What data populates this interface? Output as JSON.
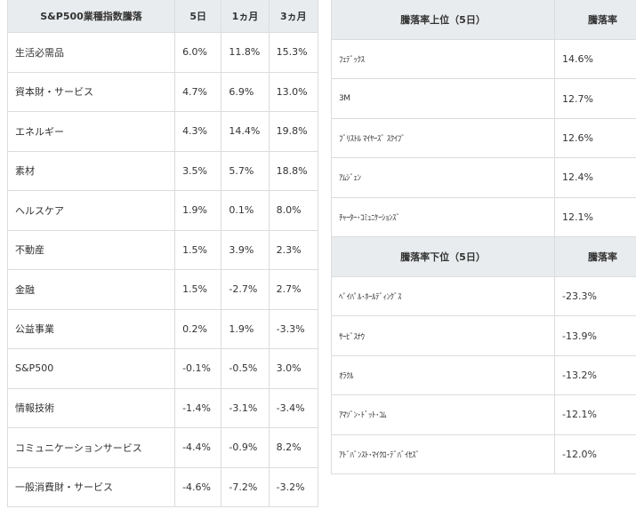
{
  "sector_table": {
    "headers": [
      "S&P500業種指数騰落",
      "5日",
      "1ヵ月",
      "3ヵ月"
    ],
    "rows": [
      {
        "name": "生活必需品",
        "d5": "6.0%",
        "m1": "11.8%",
        "m3": "15.3%"
      },
      {
        "name": "資本財・サービス",
        "d5": "4.7%",
        "m1": "6.9%",
        "m3": "13.0%"
      },
      {
        "name": "エネルギー",
        "d5": "4.3%",
        "m1": "14.4%",
        "m3": "19.8%"
      },
      {
        "name": "素材",
        "d5": "3.5%",
        "m1": "5.7%",
        "m3": "18.8%"
      },
      {
        "name": "ヘルスケア",
        "d5": "1.9%",
        "m1": "0.1%",
        "m3": "8.0%"
      },
      {
        "name": "不動産",
        "d5": "1.5%",
        "m1": "3.9%",
        "m3": "2.3%"
      },
      {
        "name": "金融",
        "d5": "1.5%",
        "m1": "-2.7%",
        "m3": "2.7%"
      },
      {
        "name": "公益事業",
        "d5": "0.2%",
        "m1": "1.9%",
        "m3": "-3.3%"
      },
      {
        "name": "S&P500",
        "d5": "-0.1%",
        "m1": "-0.5%",
        "m3": "3.0%"
      },
      {
        "name": "情報技術",
        "d5": "-1.4%",
        "m1": "-3.1%",
        "m3": "-3.4%"
      },
      {
        "name": "コミュニケーションサービス",
        "d5": "-4.4%",
        "m1": "-0.9%",
        "m3": "8.2%"
      },
      {
        "name": "一般消費財・サービス",
        "d5": "-4.6%",
        "m1": "-7.2%",
        "m3": "-3.2%"
      }
    ]
  },
  "top_movers": {
    "headers": [
      "騰落率上位（5日）",
      "騰落率"
    ],
    "rows": [
      {
        "name": "ﾌｪﾃﾞｯｸｽ",
        "rate": "14.6%"
      },
      {
        "name": "3M",
        "rate": "12.7%"
      },
      {
        "name": "ﾌﾞﾘｽﾄﾙ ﾏｲﾔｰｽﾞ ｽｸｲﾌﾞ",
        "rate": "12.6%"
      },
      {
        "name": "ｱﾑｼﾞｪﾝ",
        "rate": "12.4%"
      },
      {
        "name": "ﾁｬｰﾀｰ･ｺﾐｭﾆｹｰｼｮﾝｽﾞ",
        "rate": "12.1%"
      }
    ]
  },
  "bottom_movers": {
    "headers": [
      "騰落率下位（5日）",
      "騰落率"
    ],
    "rows": [
      {
        "name": "ﾍﾟｲﾊﾟﾙ･ﾎｰﾙﾃﾞｨﾝｸﾞｽ",
        "rate": "-23.3%"
      },
      {
        "name": "ｻｰﾋﾞｽﾅｳ",
        "rate": "-13.9%"
      },
      {
        "name": "ｵﾗｸﾙ",
        "rate": "-13.2%"
      },
      {
        "name": "ｱﾏｿﾞﾝ･ﾄﾞｯﾄ･ｺﾑ",
        "rate": "-12.1%"
      },
      {
        "name": "ｱﾄﾞﾊﾞﾝｽﾄ･ﾏｲｸﾛ･ﾃﾞﾊﾞｲｾｽﾞ",
        "rate": "-12.0%"
      }
    ]
  }
}
